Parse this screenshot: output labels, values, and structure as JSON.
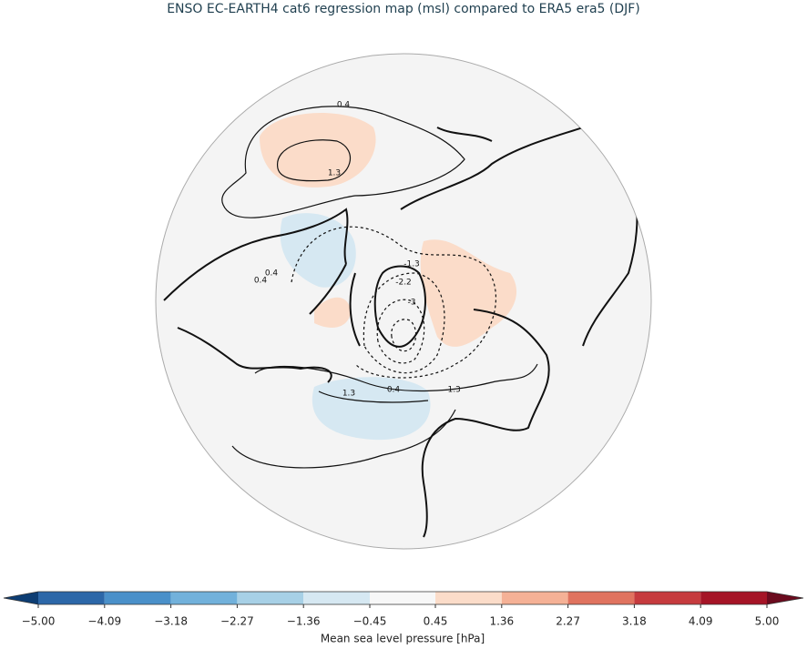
{
  "title": "ENSO EC-EARTH4 cat6 regression map (msl) compared to ERA5 era5 (DJF)",
  "contour_labels": [
    "0.4",
    "1.3",
    "0.4",
    "0.4",
    "-1.3",
    "-2.2",
    "-3",
    "0.4",
    "1.3",
    "-1.3"
  ],
  "colorbar": {
    "label": "Mean sea level pressure [hPa]",
    "ticks": [
      {
        "value": -5.0,
        "label": "−5.00"
      },
      {
        "value": -4.09,
        "label": "−4.09"
      },
      {
        "value": -3.18,
        "label": "−3.18"
      },
      {
        "value": -2.27,
        "label": "−2.27"
      },
      {
        "value": -1.36,
        "label": "−1.36"
      },
      {
        "value": -0.45,
        "label": "−0.45"
      },
      {
        "value": 0.45,
        "label": "0.45"
      },
      {
        "value": 1.36,
        "label": "1.36"
      },
      {
        "value": 2.27,
        "label": "2.27"
      },
      {
        "value": 3.18,
        "label": "3.18"
      },
      {
        "value": 4.09,
        "label": "4.09"
      },
      {
        "value": 5.0,
        "label": "5.00"
      }
    ],
    "colors": [
      "#2c67a8",
      "#4a90c9",
      "#72b1db",
      "#a7d0e6",
      "#d6e8f2",
      "#f7f7f7",
      "#fbdcc9",
      "#f5b196",
      "#e0735f",
      "#c63b3e",
      "#a51426"
    ],
    "under_color": "#0d3d73",
    "over_color": "#6b0b1e"
  }
}
